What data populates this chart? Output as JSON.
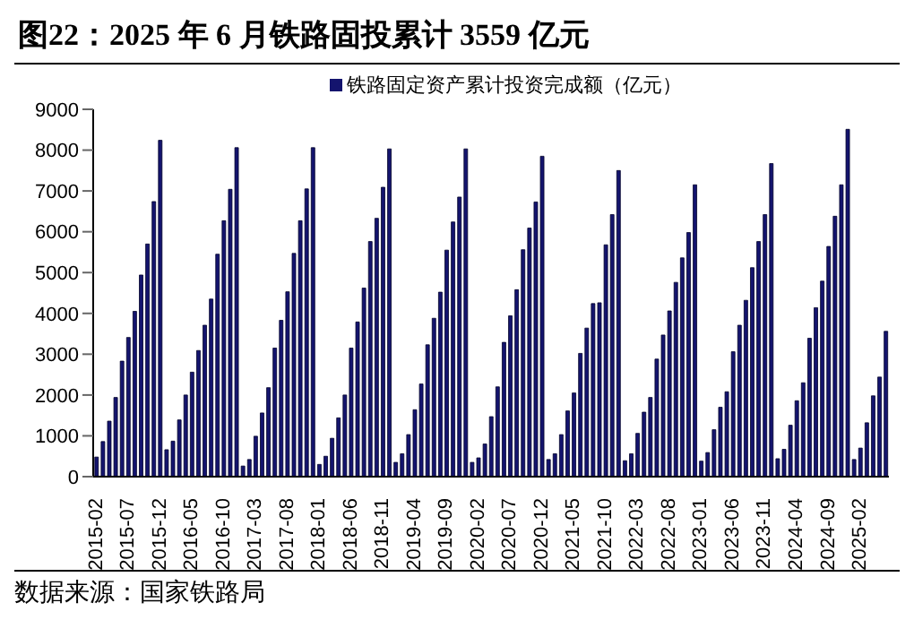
{
  "chart_data": {
    "type": "bar",
    "title": "图22：2025 年 6 月铁路固投累计 3559 亿元",
    "categories": [
      "2015-02",
      null,
      null,
      null,
      null,
      "2015-07",
      null,
      null,
      null,
      null,
      "2015-12",
      null,
      null,
      null,
      null,
      "2016-05",
      null,
      null,
      null,
      null,
      "2016-10",
      null,
      null,
      null,
      null,
      "2017-03",
      null,
      null,
      null,
      null,
      "2017-08",
      null,
      null,
      null,
      null,
      "2018-01",
      null,
      null,
      null,
      null,
      "2018-06",
      null,
      null,
      null,
      null,
      "2018-11",
      null,
      null,
      null,
      null,
      "2019-04",
      null,
      null,
      null,
      null,
      "2019-09",
      null,
      null,
      null,
      null,
      "2020-02",
      null,
      null,
      null,
      null,
      "2020-07",
      null,
      null,
      null,
      null,
      "2020-12",
      null,
      null,
      null,
      null,
      "2021-05",
      null,
      null,
      null,
      null,
      "2021-10",
      null,
      null,
      null,
      null,
      "2022-03",
      null,
      null,
      null,
      null,
      "2022-08",
      null,
      null,
      null,
      null,
      "2023-01",
      null,
      null,
      null,
      null,
      "2023-06",
      null,
      null,
      null,
      null,
      "2023-11",
      null,
      null,
      null,
      null,
      "2024-04",
      null,
      null,
      null,
      null,
      "2024-09",
      null,
      null,
      null,
      null,
      "2025-02",
      null,
      null,
      null,
      null
    ],
    "series": [
      {
        "name": "铁路固定资产累计投资完成额（亿元）",
        "color": "#14146e",
        "values": [
          480,
          860,
          1360,
          1940,
          2830,
          3410,
          4050,
          4940,
          5700,
          6740,
          8240,
          660,
          870,
          1390,
          2000,
          2560,
          3090,
          3710,
          4350,
          5450,
          6270,
          7040,
          8060,
          260,
          420,
          990,
          1560,
          2180,
          3150,
          3830,
          4530,
          5470,
          6270,
          7050,
          8060,
          300,
          500,
          940,
          1440,
          2000,
          3150,
          3790,
          4620,
          5760,
          6330,
          7090,
          8030,
          350,
          560,
          1030,
          1640,
          2270,
          3230,
          3880,
          4520,
          5550,
          6240,
          6850,
          8030,
          350,
          460,
          800,
          1470,
          2200,
          3290,
          3940,
          4580,
          5560,
          6090,
          6730,
          7850,
          420,
          560,
          1030,
          1610,
          2050,
          3020,
          3640,
          4240,
          4260,
          5680,
          6420,
          7500,
          390,
          560,
          1060,
          1580,
          1940,
          2880,
          3470,
          4060,
          4760,
          5360,
          5980,
          7150,
          380,
          590,
          1150,
          1700,
          2080,
          3060,
          3710,
          4320,
          5120,
          5760,
          6420,
          7670,
          440,
          670,
          1260,
          1860,
          2300,
          3390,
          4140,
          4790,
          5640,
          6380,
          7150,
          8510,
          420,
          700,
          1320,
          1980,
          2440,
          3560
        ]
      }
    ],
    "ylim": [
      0,
      9000
    ],
    "yticks": [
      0,
      1000,
      2000,
      3000,
      4000,
      5000,
      6000,
      7000,
      8000,
      9000
    ],
    "legend": "top",
    "annotations": [
      "数据来源：国家铁路局"
    ]
  }
}
